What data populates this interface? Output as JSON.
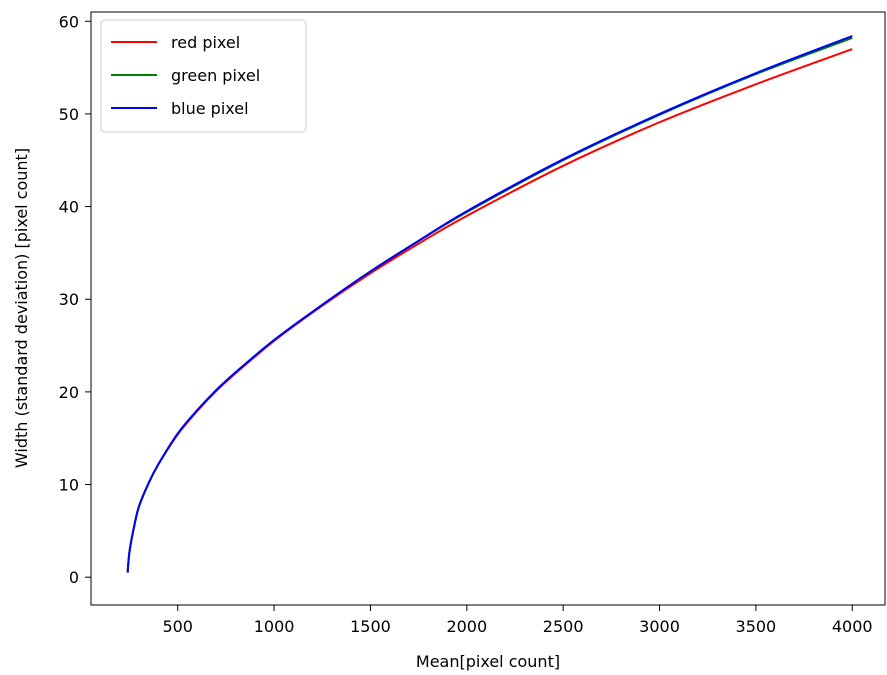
{
  "chart_data": {
    "type": "line",
    "title": "",
    "xlabel": "Mean[pixel count]",
    "ylabel": "Width (standard deviation) [pixel count]",
    "xlim": [
      50,
      4170
    ],
    "ylim": [
      -3,
      61
    ],
    "xticks": [
      500,
      1000,
      1500,
      2000,
      2500,
      3000,
      3500,
      4000
    ],
    "yticks": [
      0,
      10,
      20,
      30,
      40,
      50,
      60
    ],
    "grid": false,
    "legend_position": "top-left",
    "series": [
      {
        "name": "red pixel",
        "color": "#ff0000",
        "x": [
          240,
          250,
          275,
          300,
          350,
          400,
          500,
          600,
          700,
          800,
          1000,
          1250,
          1500,
          1750,
          2000,
          2500,
          3000,
          3500,
          4000
        ],
        "y": [
          0.5,
          2.8,
          5.6,
          7.7,
          10.2,
          12.2,
          15.4,
          17.9,
          20.1,
          22.0,
          25.5,
          29.3,
          32.8,
          36.0,
          39.0,
          44.4,
          49.1,
          53.2,
          57.0
        ]
      },
      {
        "name": "green pixel",
        "color": "#008000",
        "x": [
          240,
          250,
          275,
          300,
          350,
          400,
          500,
          600,
          700,
          800,
          1000,
          1250,
          1500,
          1750,
          2000,
          2500,
          3000,
          3500,
          4000
        ],
        "y": [
          0.5,
          2.8,
          5.6,
          7.7,
          10.2,
          12.2,
          15.5,
          18.0,
          20.2,
          22.1,
          25.6,
          29.4,
          33.0,
          36.3,
          39.4,
          45.0,
          49.9,
          54.3,
          58.2
        ]
      },
      {
        "name": "blue pixel",
        "color": "#0000ff",
        "x": [
          240,
          250,
          275,
          300,
          350,
          400,
          500,
          600,
          700,
          800,
          1000,
          1250,
          1500,
          1750,
          2000,
          2500,
          3000,
          3500,
          4000
        ],
        "y": [
          0.5,
          2.8,
          5.6,
          7.7,
          10.2,
          12.2,
          15.5,
          18.0,
          20.2,
          22.1,
          25.6,
          29.4,
          33.0,
          36.3,
          39.5,
          45.1,
          50.0,
          54.4,
          58.4
        ]
      }
    ]
  }
}
